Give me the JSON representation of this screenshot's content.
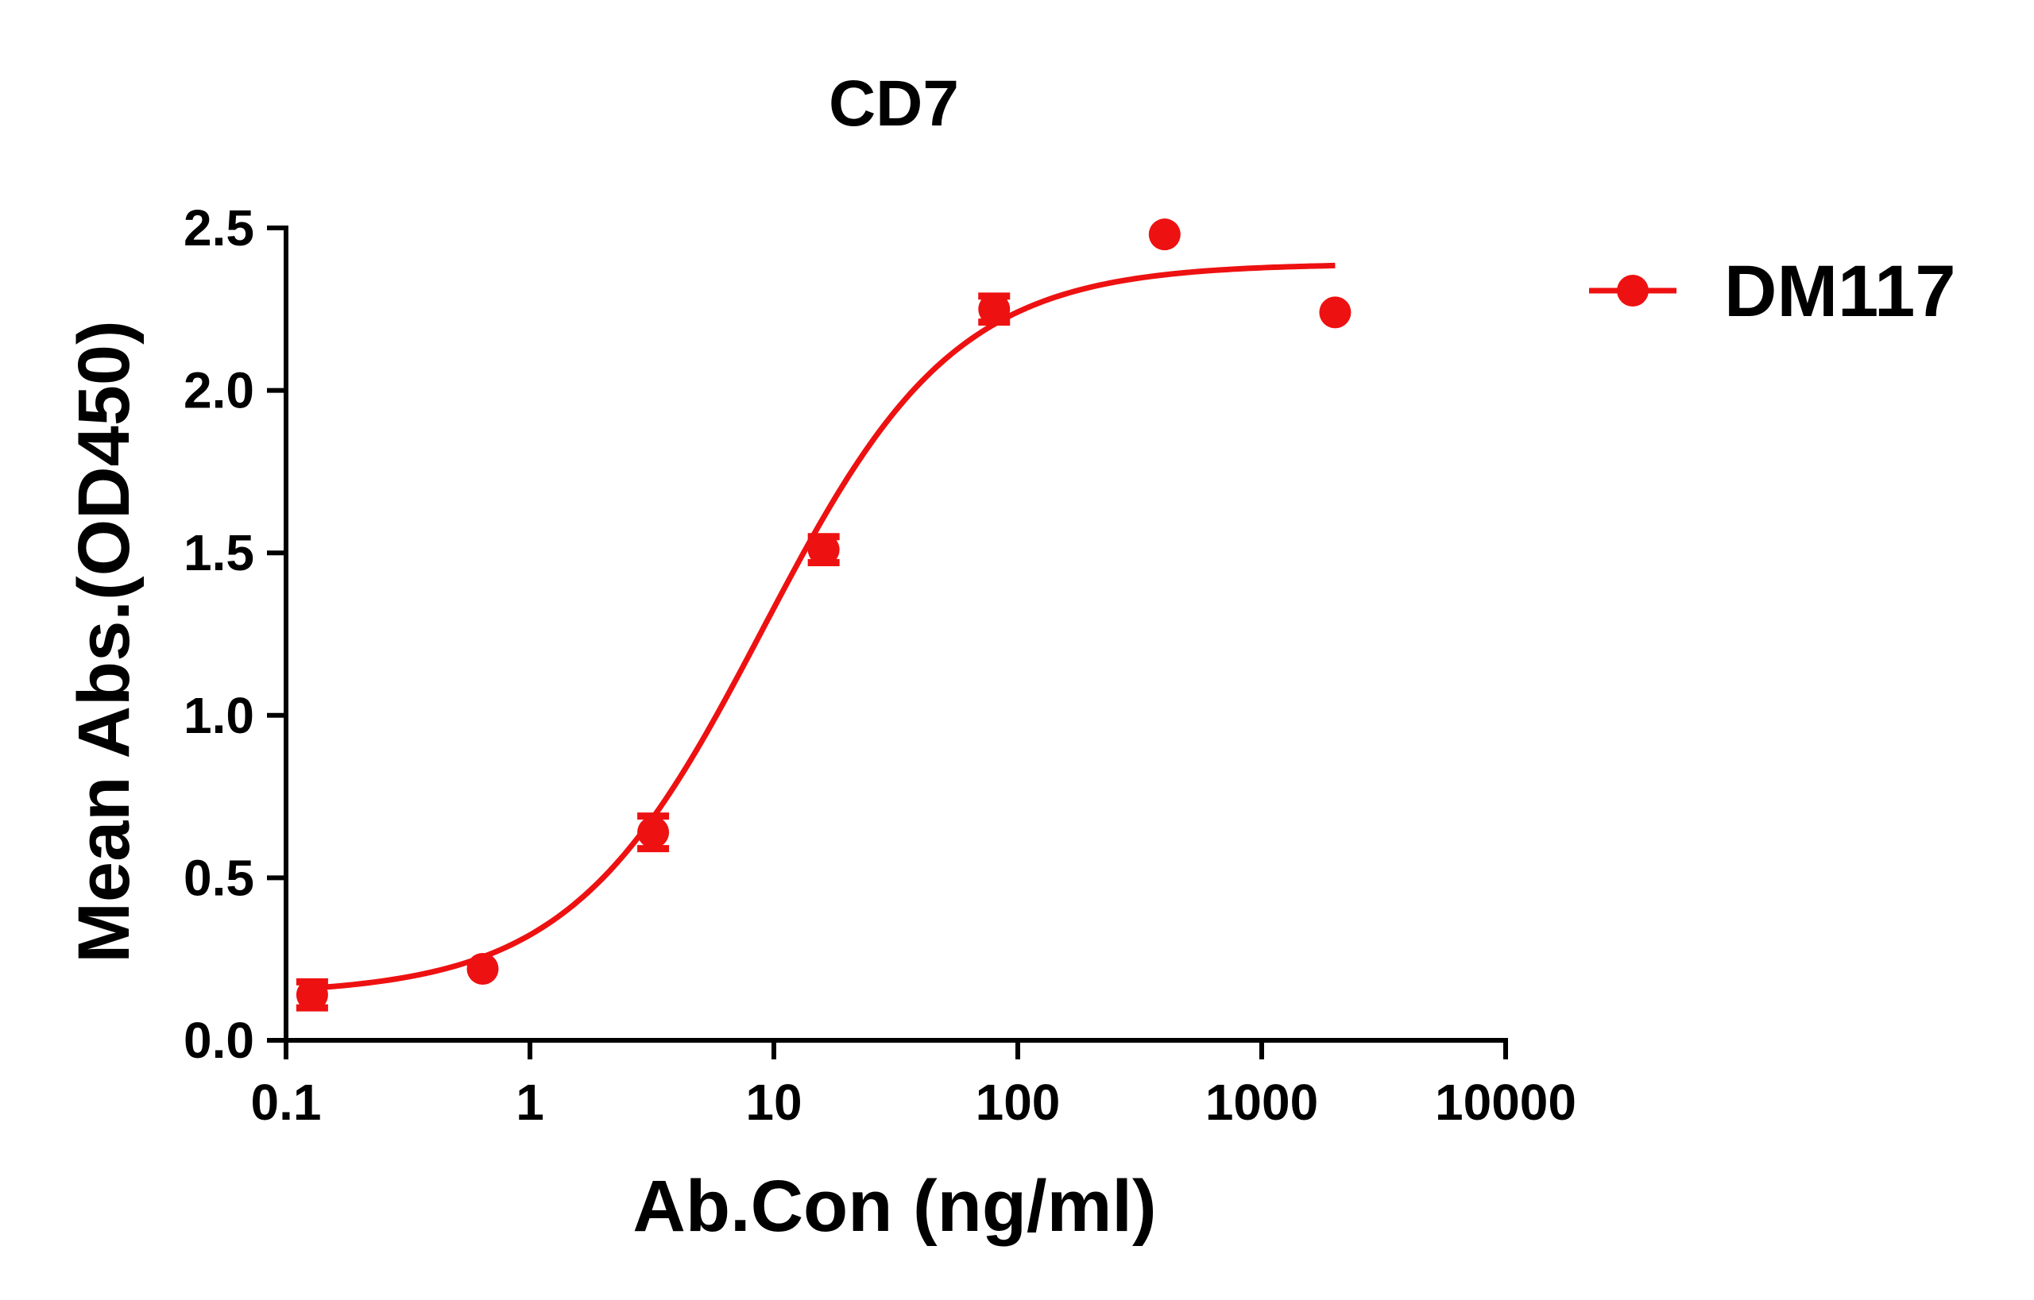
{
  "chart_data": {
    "type": "scatter",
    "title": "CD7",
    "xlabel": "Ab.Con (ng/ml)",
    "ylabel": "Mean Abs.(OD450)",
    "x_scale": "log",
    "xlim": [
      0.1,
      10000
    ],
    "ylim": [
      0,
      2.5
    ],
    "x_ticks": [
      "0.1",
      "1",
      "10",
      "100",
      "1000",
      "10000"
    ],
    "x_tick_values": [
      0.1,
      1,
      10,
      100,
      1000,
      10000
    ],
    "y_ticks": [
      "0.0",
      "0.5",
      "1.0",
      "1.5",
      "2.0",
      "2.5"
    ],
    "y_tick_values": [
      0,
      0.5,
      1.0,
      1.5,
      2.0,
      2.5
    ],
    "grid": false,
    "legend_position": "right",
    "series": [
      {
        "name": "DM117",
        "color": "#ee1111",
        "marker": "circle",
        "x": [
          0.128,
          0.64,
          3.2,
          16,
          80,
          400,
          2000
        ],
        "y": [
          0.14,
          0.22,
          0.64,
          1.51,
          2.25,
          2.48,
          2.24
        ],
        "error": [
          0.04,
          0.0,
          0.05,
          0.04,
          0.04,
          0.0,
          0.0
        ],
        "fit": {
          "type": "4PL",
          "bottom": 0.14,
          "top": 2.39,
          "ec50": 9.0,
          "hill": 1.1,
          "x_range": [
            0.128,
            2000
          ]
        }
      }
    ]
  }
}
